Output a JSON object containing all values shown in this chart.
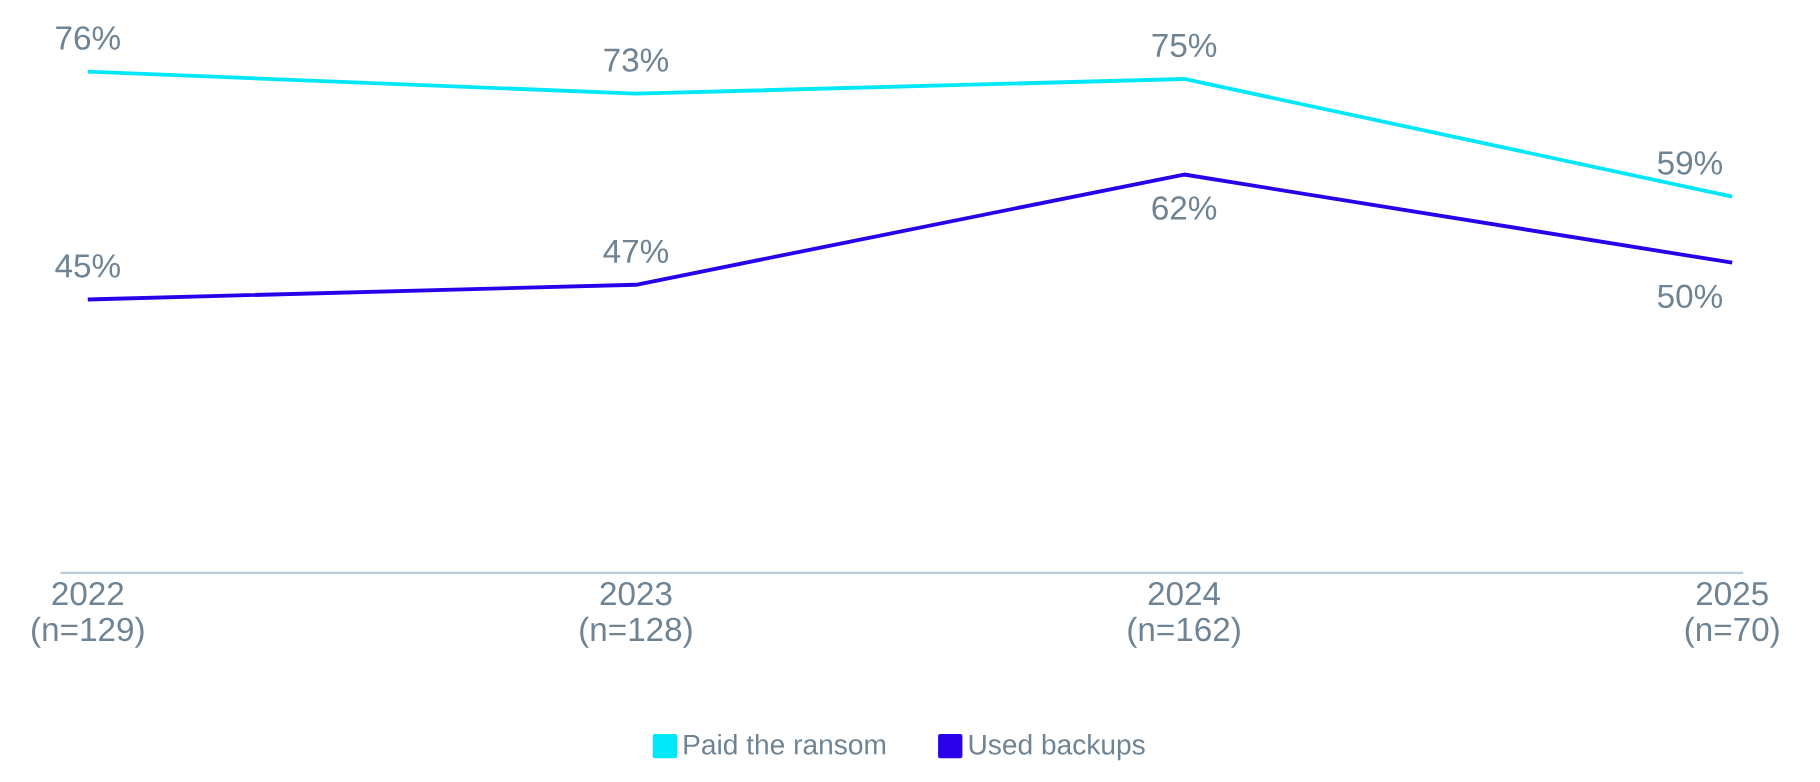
{
  "chart_data": {
    "type": "line",
    "categories": [
      "2022 (n=129)",
      "2023 (n=128)",
      "2024 (n=162)",
      "2025 (n=70)"
    ],
    "series": [
      {
        "name": "Paid the ransom",
        "color": "#00e8f8",
        "values": [
          76,
          73,
          75,
          59
        ],
        "value_labels": [
          "76%",
          "73%",
          "75%",
          "59%"
        ]
      },
      {
        "name": "Used backups",
        "color": "#2a00ea",
        "values": [
          45,
          47,
          62,
          50
        ],
        "value_labels": [
          "45%",
          "47%",
          "62%",
          "50%"
        ]
      }
    ],
    "grid": false,
    "legend": "bottom"
  }
}
